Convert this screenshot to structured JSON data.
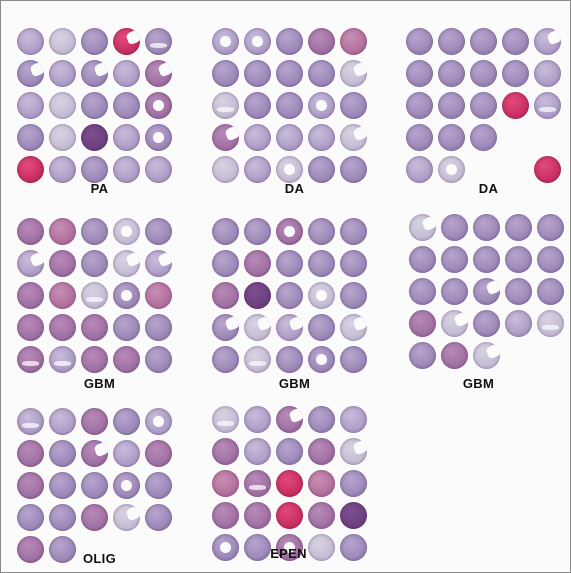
{
  "panels": [
    {
      "id": "pa",
      "label": "PA",
      "cores": [
        "c2",
        "c5",
        "c1",
        "c4",
        "c1",
        "c1",
        "c2",
        "c1",
        "c2",
        "c3",
        "c2",
        "c5",
        "c1",
        "c1",
        "c3",
        "c1",
        "c5",
        "c7",
        "c2",
        "c1",
        "c4",
        "c2",
        "c1",
        "c2",
        "c2"
      ],
      "marks": {
        "3": "torn",
        "4": "speck",
        "5": "torn",
        "7": "torn",
        "9": "torn",
        "14": "hole",
        "19": "hole"
      }
    },
    {
      "id": "da1",
      "label": "DA",
      "cores": [
        "c2",
        "c2",
        "c1",
        "c3",
        "c6",
        "c1",
        "c1",
        "c1",
        "c1",
        "c5",
        "c5",
        "c1",
        "c1",
        "c2",
        "c1",
        "c3",
        "c2",
        "c2",
        "c2",
        "c5",
        "c5",
        "c2",
        "c5",
        "c1",
        "c1"
      ],
      "marks": {
        "0": "hole",
        "1": "hole",
        "9": "torn",
        "10": "speck",
        "13": "hole",
        "15": "torn",
        "19": "torn",
        "22": "hole"
      }
    },
    {
      "id": "da2",
      "label": "DA",
      "cores": [
        "c1",
        "c1",
        "c1",
        "c1",
        "c2",
        "c1",
        "c1",
        "c1",
        "c1",
        "c2",
        "c1",
        "c1",
        "c1",
        "c4",
        "c2",
        "c1",
        "c1",
        "c1",
        "c1",
        "c1",
        "c2",
        "c5",
        "c1",
        "c1",
        "c4"
      ],
      "hidden": [
        18,
        19,
        22,
        23
      ],
      "marks": {
        "4": "torn",
        "14": "speck",
        "21": "hole"
      }
    },
    {
      "id": "gbm1",
      "label": "GBM",
      "cores": [
        "c3",
        "c6",
        "c1",
        "c5",
        "c1",
        "c2",
        "c3",
        "c1",
        "c5",
        "c2",
        "c3",
        "c6",
        "c5",
        "c1",
        "c6",
        "c3",
        "c3",
        "c3",
        "c1",
        "c1",
        "c3",
        "c2",
        "c3",
        "c3",
        "c1"
      ],
      "marks": {
        "3": "hole",
        "5": "torn",
        "8": "torn",
        "9": "torn",
        "12": "speck",
        "13": "hole",
        "20": "speck",
        "21": "speck"
      }
    },
    {
      "id": "gbm2",
      "label": "GBM",
      "cores": [
        "c1",
        "c1",
        "c3",
        "c1",
        "c1",
        "c1",
        "c3",
        "c1",
        "c1",
        "c1",
        "c3",
        "c7",
        "c1",
        "c5",
        "c1",
        "c1",
        "c5",
        "c2",
        "c1",
        "c5",
        "c1",
        "c5",
        "c1",
        "c1",
        "c1"
      ],
      "marks": {
        "2": "hole",
        "13": "hole",
        "15": "torn",
        "16": "torn",
        "17": "torn",
        "19": "torn",
        "21": "speck",
        "23": "hole"
      }
    },
    {
      "id": "gbm3",
      "label": "GBM",
      "cores": [
        "c5",
        "c1",
        "c1",
        "c1",
        "c1",
        "c1",
        "c1",
        "c1",
        "c1",
        "c1",
        "c1",
        "c1",
        "c1",
        "c1",
        "c1",
        "c3",
        "c5",
        "c1",
        "c2",
        "c5",
        "c1",
        "c3",
        "c5",
        "c1",
        "c1"
      ],
      "hidden": [
        23,
        24
      ],
      "marks": {
        "0": "torn",
        "12": "torn",
        "16": "torn",
        "19": "speck",
        "22": "torn"
      }
    },
    {
      "id": "olig",
      "label": "OLIG",
      "cores": [
        "c2",
        "c2",
        "c3",
        "c1",
        "c2",
        "c3",
        "c1",
        "c3",
        "c2",
        "c3",
        "c3",
        "c1",
        "c1",
        "c1",
        "c1",
        "c1",
        "c1",
        "c3",
        "c5",
        "c1",
        "c3",
        "c1",
        "c1",
        "c1",
        "c1"
      ],
      "hidden": [
        22,
        23,
        24
      ],
      "marks": {
        "0": "speck",
        "4": "hole",
        "7": "torn",
        "13": "hole",
        "18": "torn"
      }
    },
    {
      "id": "epen",
      "label": "EPEN",
      "cores": [
        "c5",
        "c2",
        "c3",
        "c1",
        "c2",
        "c3",
        "c2",
        "c1",
        "c3",
        "c5",
        "c6",
        "c3",
        "c4",
        "c6",
        "c1",
        "c3",
        "c3",
        "c4",
        "c3",
        "c7",
        "c1",
        "c1",
        "c3",
        "c5",
        "c1"
      ],
      "marks": {
        "0": "speck",
        "2": "torn",
        "9": "torn",
        "11": "speck",
        "20": "hole",
        "22": "hole"
      }
    }
  ]
}
